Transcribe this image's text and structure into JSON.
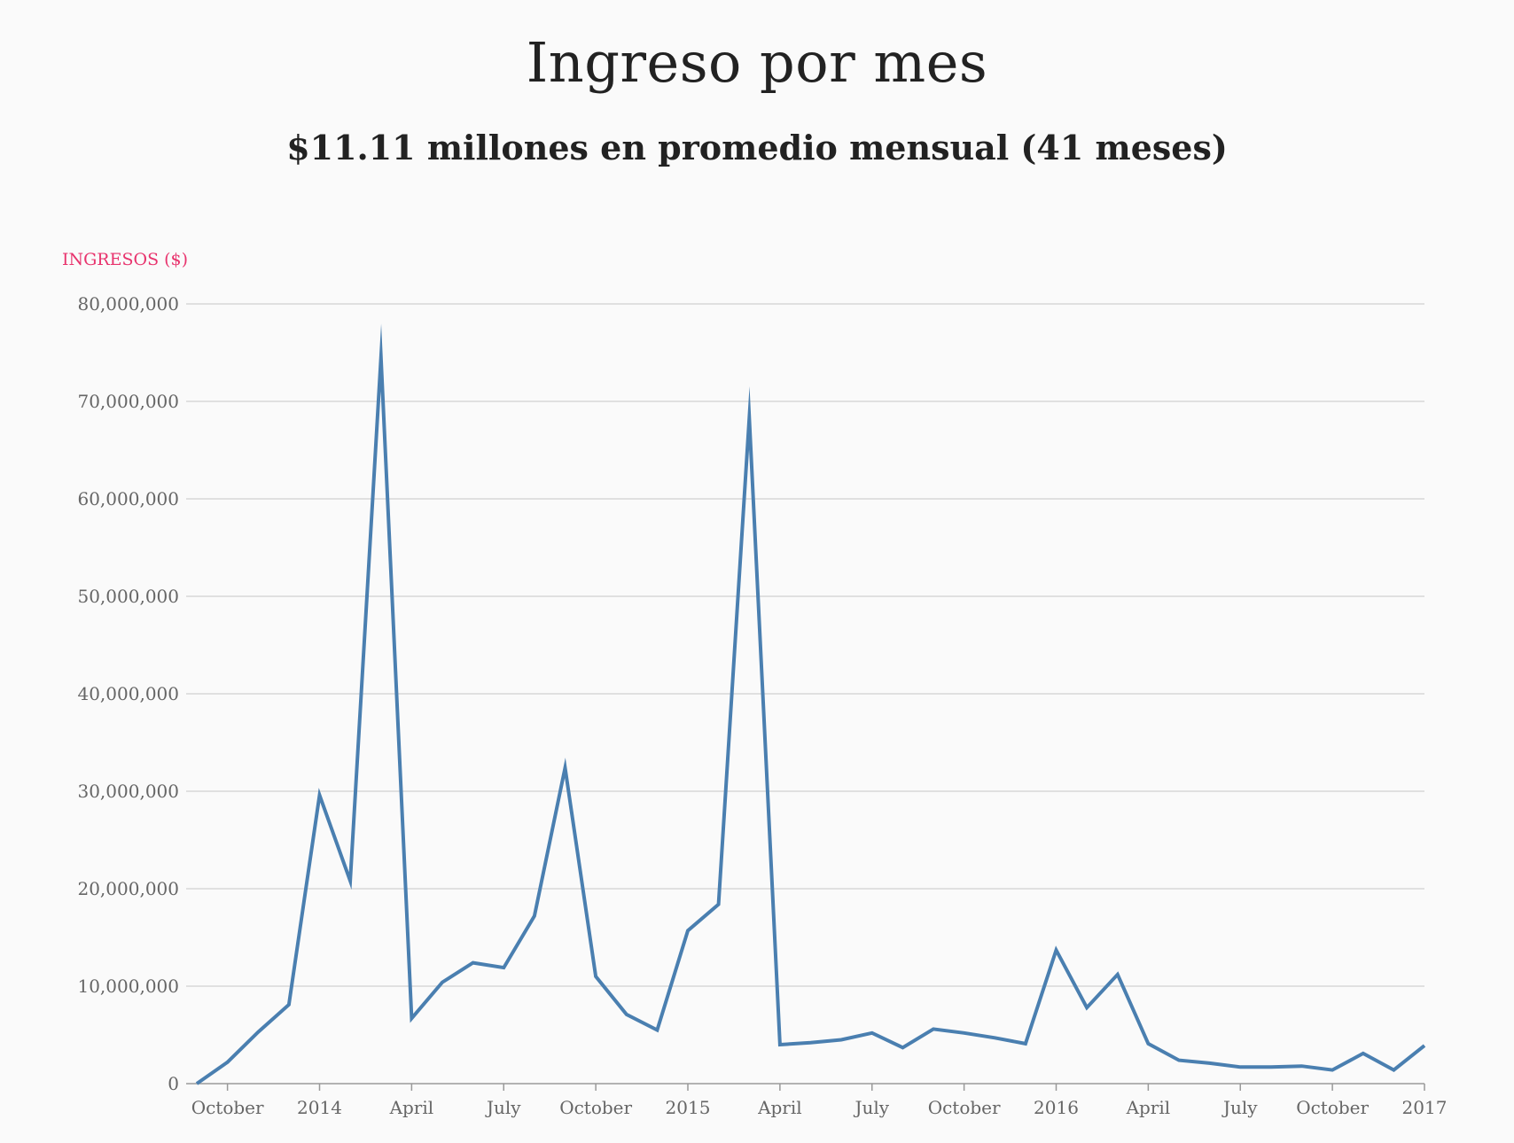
{
  "header": {
    "title": "Ingreso por mes",
    "subtitle": "$11.11 millones en promedio mensual (41 meses)"
  },
  "colors": {
    "line": "#4a7fb0",
    "grid": "#d8d8d8",
    "ylabel": "#e8336d",
    "axis": "#999999"
  },
  "chart_data": {
    "type": "line",
    "title": "Ingreso por mes",
    "subtitle": "$11.11 millones en promedio mensual (41 meses)",
    "ylabel": "INGRESOS ($)",
    "xlabel": "",
    "ylim": [
      0,
      80000000
    ],
    "yticks": [
      0,
      10000000,
      20000000,
      30000000,
      40000000,
      50000000,
      60000000,
      70000000,
      80000000
    ],
    "ytick_labels": [
      "0",
      "10,000,000",
      "20,000,000",
      "30,000,000",
      "40,000,000",
      "50,000,000",
      "60,000,000",
      "70,000,000",
      "80,000,000"
    ],
    "xlim": [
      "2013-09",
      "2017-01"
    ],
    "xticks": [
      "2013-10",
      "2014-01",
      "2014-04",
      "2014-07",
      "2014-10",
      "2015-01",
      "2015-04",
      "2015-07",
      "2015-10",
      "2016-01",
      "2016-04",
      "2016-07",
      "2016-10",
      "2017-01"
    ],
    "xtick_labels": [
      "October",
      "2014",
      "April",
      "July",
      "October",
      "2015",
      "April",
      "July",
      "October",
      "2016",
      "April",
      "July",
      "October",
      "2017"
    ],
    "grid": true,
    "series": [
      {
        "x": [
          "2013-09",
          "2013-10",
          "2013-11",
          "2013-12",
          "2014-01",
          "2014-02",
          "2014-03",
          "2014-04",
          "2014-05",
          "2014-06",
          "2014-07",
          "2014-08",
          "2014-09",
          "2014-10",
          "2014-11",
          "2014-12",
          "2015-01",
          "2015-02",
          "2015-03",
          "2015-04",
          "2015-05",
          "2015-06",
          "2015-07",
          "2015-08",
          "2015-09",
          "2015-10",
          "2015-11",
          "2015-12",
          "2016-01",
          "2016-02",
          "2016-03",
          "2016-04",
          "2016-05",
          "2016-06",
          "2016-07",
          "2016-08",
          "2016-09",
          "2016-10",
          "2016-11",
          "2016-12",
          "2017-01"
        ],
        "values": [
          0,
          2200000,
          5300000,
          8100000,
          29600000,
          20800000,
          74500000,
          6700000,
          10400000,
          12400000,
          11900000,
          17200000,
          32400000,
          11000000,
          7100000,
          5500000,
          15700000,
          18400000,
          68300000,
          4000000,
          4200000,
          4500000,
          5200000,
          3700000,
          5600000,
          5200000,
          4700000,
          4100000,
          13700000,
          7800000,
          11200000,
          4100000,
          2400000,
          2100000,
          1700000,
          1700000,
          1800000,
          1400000,
          3100000,
          1400000,
          3900000
        ]
      }
    ]
  }
}
